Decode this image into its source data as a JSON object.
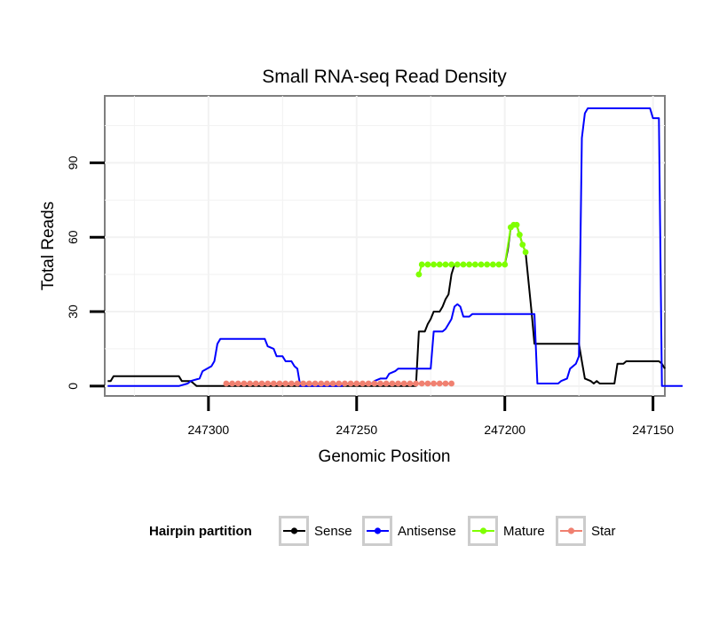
{
  "chart_data": {
    "type": "line",
    "title": "Small RNA-seq Read Density",
    "xlabel": "Genomic Position",
    "ylabel": "Total Reads",
    "x_reversed": true,
    "xlim": [
      247335,
      247146
    ],
    "ylim": [
      -4,
      117
    ],
    "x_ticks": [
      247300,
      247250,
      247200,
      247150
    ],
    "y_ticks": [
      0,
      30,
      60,
      90
    ],
    "grid": true,
    "legend": {
      "title": "Hairpin partition",
      "position": "bottom",
      "entries": [
        {
          "label": "Sense",
          "color": "#000000"
        },
        {
          "label": "Antisense",
          "color": "#0000ff"
        },
        {
          "label": "Mature",
          "color": "#7fff00"
        },
        {
          "label": "Star",
          "color": "#f08070"
        }
      ]
    },
    "series": [
      {
        "name": "Sense",
        "color": "#000000",
        "points": [
          [
            247334,
            2
          ],
          [
            247333,
            2
          ],
          [
            247332,
            4
          ],
          [
            247330,
            4
          ],
          [
            247310,
            4
          ],
          [
            247309,
            2
          ],
          [
            247306,
            2
          ],
          [
            247305,
            1
          ],
          [
            247304,
            0
          ],
          [
            247260,
            0
          ],
          [
            247230,
            0
          ],
          [
            247229,
            22
          ],
          [
            247227,
            22
          ],
          [
            247226,
            25
          ],
          [
            247225,
            27
          ],
          [
            247224,
            30
          ],
          [
            247222,
            30
          ],
          [
            247221,
            32
          ],
          [
            247220,
            35
          ],
          [
            247219,
            37
          ],
          [
            247218,
            45
          ],
          [
            247217,
            49
          ],
          [
            247200,
            49
          ],
          [
            247199,
            55
          ],
          [
            247198,
            64
          ],
          [
            247197,
            65
          ],
          [
            247196,
            65
          ],
          [
            247195,
            61
          ],
          [
            247194,
            57
          ],
          [
            247193,
            54
          ],
          [
            247191,
            30
          ],
          [
            247190,
            17
          ],
          [
            247175,
            17
          ],
          [
            247174,
            10
          ],
          [
            247173,
            3
          ],
          [
            247171,
            2
          ],
          [
            247170,
            1
          ],
          [
            247169,
            2
          ],
          [
            247168,
            1
          ],
          [
            247163,
            1
          ],
          [
            247162,
            9
          ],
          [
            247160,
            9
          ],
          [
            247159,
            10
          ],
          [
            247150,
            10
          ],
          [
            247148,
            10
          ],
          [
            247147,
            9
          ],
          [
            247146,
            7
          ]
        ]
      },
      {
        "name": "Antisense",
        "color": "#0000ff",
        "points": [
          [
            247334,
            0
          ],
          [
            247310,
            0
          ],
          [
            247307,
            1
          ],
          [
            247306,
            2
          ],
          [
            247303,
            3
          ],
          [
            247302,
            6
          ],
          [
            247299,
            8
          ],
          [
            247298,
            10
          ],
          [
            247297,
            17
          ],
          [
            247296,
            19
          ],
          [
            247281,
            19
          ],
          [
            247280,
            16
          ],
          [
            247278,
            15
          ],
          [
            247277,
            12
          ],
          [
            247275,
            12
          ],
          [
            247274,
            10
          ],
          [
            247272,
            10
          ],
          [
            247271,
            8
          ],
          [
            247270,
            7
          ],
          [
            247269,
            0
          ],
          [
            247255,
            0
          ],
          [
            247254,
            1
          ],
          [
            247245,
            1
          ],
          [
            247244,
            2
          ],
          [
            247242,
            3
          ],
          [
            247240,
            3
          ],
          [
            247239,
            5
          ],
          [
            247237,
            6
          ],
          [
            247236,
            7
          ],
          [
            247225,
            7
          ],
          [
            247224,
            22
          ],
          [
            247221,
            22
          ],
          [
            247220,
            23
          ],
          [
            247219,
            25
          ],
          [
            247218,
            27
          ],
          [
            247217,
            32
          ],
          [
            247216,
            33
          ],
          [
            247215,
            32
          ],
          [
            247214,
            28
          ],
          [
            247212,
            28
          ],
          [
            247211,
            29
          ],
          [
            247190,
            29
          ],
          [
            247189,
            1
          ],
          [
            247182,
            1
          ],
          [
            247181,
            2
          ],
          [
            247179,
            3
          ],
          [
            247178,
            7
          ],
          [
            247176,
            9
          ],
          [
            247175,
            12
          ],
          [
            247174,
            100
          ],
          [
            247173,
            110
          ],
          [
            247172,
            112
          ],
          [
            247151,
            112
          ],
          [
            247150,
            108
          ],
          [
            247148,
            108
          ],
          [
            247147,
            0
          ],
          [
            247140,
            0
          ]
        ]
      },
      {
        "name": "Mature",
        "color": "#7fff00",
        "points": [
          [
            247229,
            45
          ],
          [
            247228,
            49
          ],
          [
            247226,
            49
          ],
          [
            247224,
            49
          ],
          [
            247222,
            49
          ],
          [
            247220,
            49
          ],
          [
            247218,
            49
          ],
          [
            247216,
            49
          ],
          [
            247214,
            49
          ],
          [
            247212,
            49
          ],
          [
            247210,
            49
          ],
          [
            247208,
            49
          ],
          [
            247206,
            49
          ],
          [
            247204,
            49
          ],
          [
            247202,
            49
          ],
          [
            247200,
            49
          ],
          [
            247198,
            64
          ],
          [
            247197,
            65
          ],
          [
            247196,
            65
          ],
          [
            247195,
            61
          ],
          [
            247194,
            57
          ],
          [
            247193,
            54
          ]
        ]
      },
      {
        "name": "Star",
        "color": "#f08070",
        "points": [
          [
            247294,
            1
          ],
          [
            247292,
            1
          ],
          [
            247290,
            1
          ],
          [
            247288,
            1
          ],
          [
            247286,
            1
          ],
          [
            247284,
            1
          ],
          [
            247282,
            1
          ],
          [
            247280,
            1
          ],
          [
            247278,
            1
          ],
          [
            247276,
            1
          ],
          [
            247274,
            1
          ],
          [
            247272,
            1
          ],
          [
            247270,
            1
          ],
          [
            247268,
            1
          ],
          [
            247266,
            1
          ],
          [
            247264,
            1
          ],
          [
            247262,
            1
          ],
          [
            247260,
            1
          ],
          [
            247258,
            1
          ],
          [
            247256,
            1
          ],
          [
            247254,
            1
          ],
          [
            247252,
            1
          ],
          [
            247250,
            1
          ],
          [
            247248,
            1
          ],
          [
            247246,
            1
          ],
          [
            247244,
            1
          ],
          [
            247242,
            1
          ],
          [
            247240,
            1
          ],
          [
            247238,
            1
          ],
          [
            247236,
            1
          ],
          [
            247234,
            1
          ],
          [
            247232,
            1
          ],
          [
            247230,
            1
          ],
          [
            247228,
            1
          ],
          [
            247226,
            1
          ],
          [
            247224,
            1
          ],
          [
            247222,
            1
          ],
          [
            247220,
            1
          ],
          [
            247218,
            1
          ]
        ]
      }
    ]
  }
}
